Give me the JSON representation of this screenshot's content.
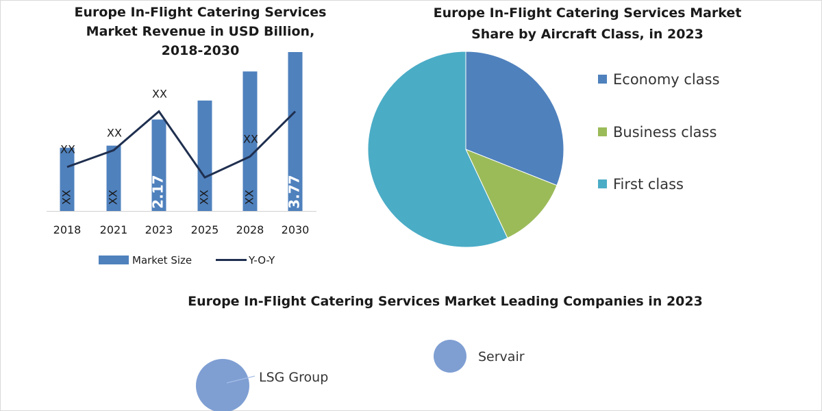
{
  "chart_data": [
    {
      "type": "bar",
      "title_lines": [
        "Europe In-Flight Catering Services",
        "Market Revenue in USD Billion,",
        "2018-2030"
      ],
      "categories": [
        "2018",
        "2021",
        "2023",
        "2025",
        "2028",
        "2030"
      ],
      "series": [
        {
          "name": "Market Size",
          "values": [
            1.5,
            1.55,
            2.17,
            2.62,
            3.31,
            3.77
          ],
          "labels": [
            "XX",
            "XX",
            "2.17",
            "XX",
            "XX",
            "3.77"
          ],
          "color": "#4f81bd"
        },
        {
          "name": "Y-O-Y",
          "chart": "line",
          "values": [
            0.42,
            0.58,
            0.95,
            0.32,
            0.52,
            0.95
          ],
          "labels": [
            "XX",
            "XX",
            "XX",
            "",
            "XX",
            ""
          ],
          "color": "#1f2f4f"
        }
      ],
      "ylim": [
        0,
        3.9
      ],
      "grid": false,
      "legend": "bottom"
    },
    {
      "type": "pie",
      "title_lines": [
        "Europe In-Flight Catering Services Market",
        "Share by Aircraft Class, in 2023"
      ],
      "labels": [
        "Economy class",
        "Business class",
        "First class"
      ],
      "values": [
        31,
        12,
        57
      ],
      "colors": [
        "#4f81bd",
        "#9bbb59",
        "#4bacc6"
      ],
      "legend": "right"
    },
    {
      "type": "scatter",
      "title": "Europe In-Flight Catering Services Market Leading Companies in 2023",
      "points": [
        {
          "label": "Servair",
          "color": "#7f9fd3"
        },
        {
          "label": "LSG Group",
          "color": "#7f9fd3"
        }
      ]
    }
  ]
}
